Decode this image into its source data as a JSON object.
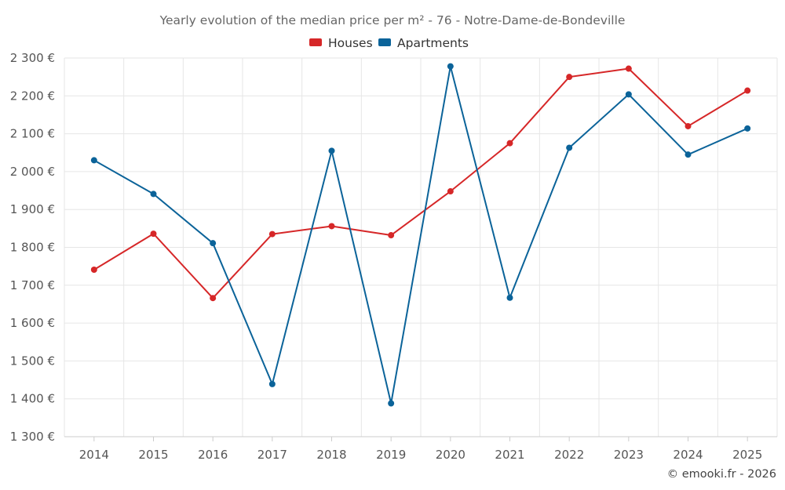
{
  "chart_data": {
    "type": "line",
    "title": "Yearly evolution of the median price per m² - 76 - Notre-Dame-de-Bondeville",
    "categories": [
      "2014",
      "2015",
      "2016",
      "2017",
      "2018",
      "2019",
      "2020",
      "2021",
      "2022",
      "2023",
      "2024",
      "2025"
    ],
    "series": [
      {
        "name": "Houses",
        "color": "#d62728",
        "values": [
          1741,
          1836,
          1666,
          1835,
          1856,
          1832,
          1948,
          2075,
          2250,
          2272,
          2120,
          2214
        ]
      },
      {
        "name": "Apartments",
        "color": "#0b6399",
        "values": [
          2030,
          1941,
          1811,
          1439,
          2055,
          1388,
          2278,
          1667,
          2063,
          2204,
          2045,
          2114
        ]
      }
    ],
    "y_ticks": [
      "1 300 €",
      "1 400 €",
      "1 500 €",
      "1 600 €",
      "1 700 €",
      "1 800 €",
      "1 900 €",
      "2 000 €",
      "2 100 €",
      "2 200 €",
      "2 300 €"
    ],
    "ylim": [
      1300,
      2300
    ],
    "xlabel": "",
    "ylabel": "",
    "grid": true,
    "legend_position": "top-center"
  },
  "credit": "© emooki.fr - 2026"
}
